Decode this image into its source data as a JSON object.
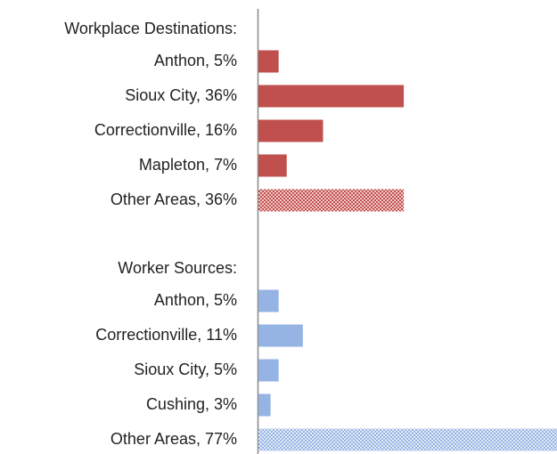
{
  "chart_data": {
    "type": "bar",
    "orientation": "horizontal",
    "groups": [
      {
        "title": "Workplace Destinations:",
        "color": "#c0504d",
        "categories": [
          "Anthon, 5%",
          "Sioux City, 36%",
          "Correctionville, 16%",
          "Mapleton, 7%",
          "Other Areas, 36%"
        ],
        "values": [
          5,
          36,
          16,
          7,
          36
        ],
        "hatched": [
          false,
          false,
          false,
          false,
          true
        ]
      },
      {
        "title": "Worker Sources:",
        "color": "#95b3e3",
        "categories": [
          "Anthon, 5%",
          "Correctionville, 11%",
          "Sioux City, 5%",
          "Cushing, 3%",
          "Other Areas, 77%"
        ],
        "values": [
          5,
          11,
          5,
          3,
          77
        ],
        "hatched": [
          false,
          false,
          false,
          false,
          true
        ]
      }
    ]
  }
}
